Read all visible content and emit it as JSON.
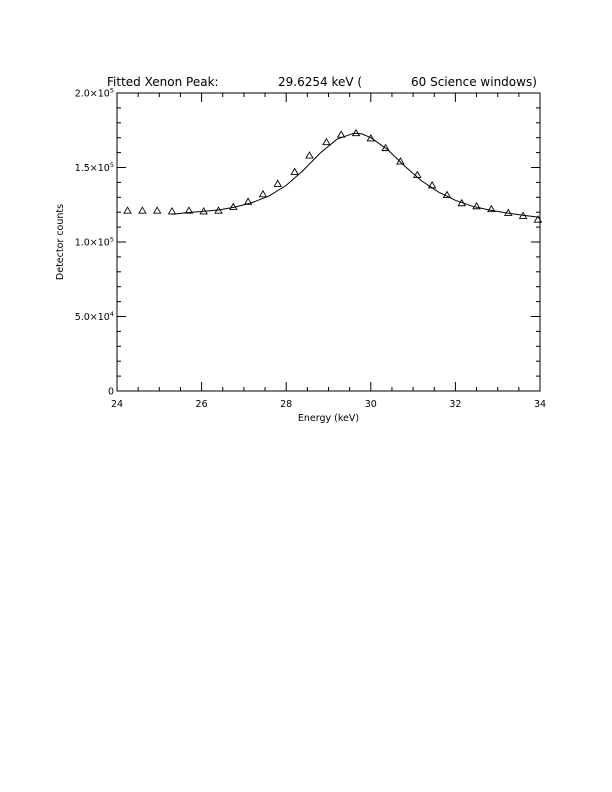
{
  "chart_data": {
    "type": "scatter",
    "title": {
      "part1": "Fitted Xenon Peak:",
      "part2": "29.6254 keV (",
      "part3": "60 Science windows)"
    },
    "xlabel": "Energy (keV)",
    "ylabel": "Detector counts",
    "xlim": [
      24,
      34
    ],
    "ylim": [
      0,
      200000
    ],
    "x_ticks": [
      24,
      26,
      28,
      30,
      32,
      34
    ],
    "x_tick_labels": [
      "24",
      "26",
      "28",
      "30",
      "32",
      "34"
    ],
    "y_ticks": [
      0,
      50000,
      100000,
      150000,
      200000
    ],
    "y_tick_labels": [
      {
        "mant": "0",
        "exp": ""
      },
      {
        "mant": "5.0×10",
        "exp": "4"
      },
      {
        "mant": "1.0×10",
        "exp": "5"
      },
      {
        "mant": "1.5×10",
        "exp": "5"
      },
      {
        "mant": "2.0×10",
        "exp": "5"
      }
    ],
    "grid": false,
    "series": [
      {
        "kind": "points",
        "marker": "triangle",
        "x": [
          24.25,
          24.6,
          24.95,
          25.3,
          25.7,
          26.05,
          26.4,
          26.75,
          27.1,
          27.45,
          27.8,
          28.2,
          28.55,
          28.95,
          29.3,
          29.65,
          30.0,
          30.35,
          30.7,
          31.1,
          31.45,
          31.8,
          32.15,
          32.5,
          32.85,
          33.25,
          33.6,
          33.95
        ],
        "y": [
          121000,
          121000,
          121000,
          120500,
          121000,
          120500,
          121000,
          123500,
          127000,
          132000,
          139000,
          147000,
          158000,
          167000,
          172000,
          173000,
          169500,
          163000,
          154000,
          145000,
          138000,
          131500,
          126000,
          124000,
          122000,
          119500,
          117500,
          115000
        ]
      },
      {
        "kind": "line",
        "x": [
          25.3,
          25.6,
          26.0,
          26.4,
          26.8,
          27.2,
          27.6,
          28.0,
          28.4,
          28.8,
          29.2,
          29.6,
          29.8,
          30.0,
          30.4,
          30.8,
          31.2,
          31.6,
          32.0,
          32.4,
          32.8,
          33.2,
          33.6,
          34.0
        ],
        "y": [
          118500,
          119500,
          120500,
          121500,
          123500,
          126500,
          131000,
          138000,
          148000,
          159500,
          169000,
          173000,
          172500,
          170000,
          162000,
          151000,
          141000,
          133500,
          128000,
          124000,
          121500,
          119500,
          118000,
          116500
        ]
      }
    ]
  }
}
